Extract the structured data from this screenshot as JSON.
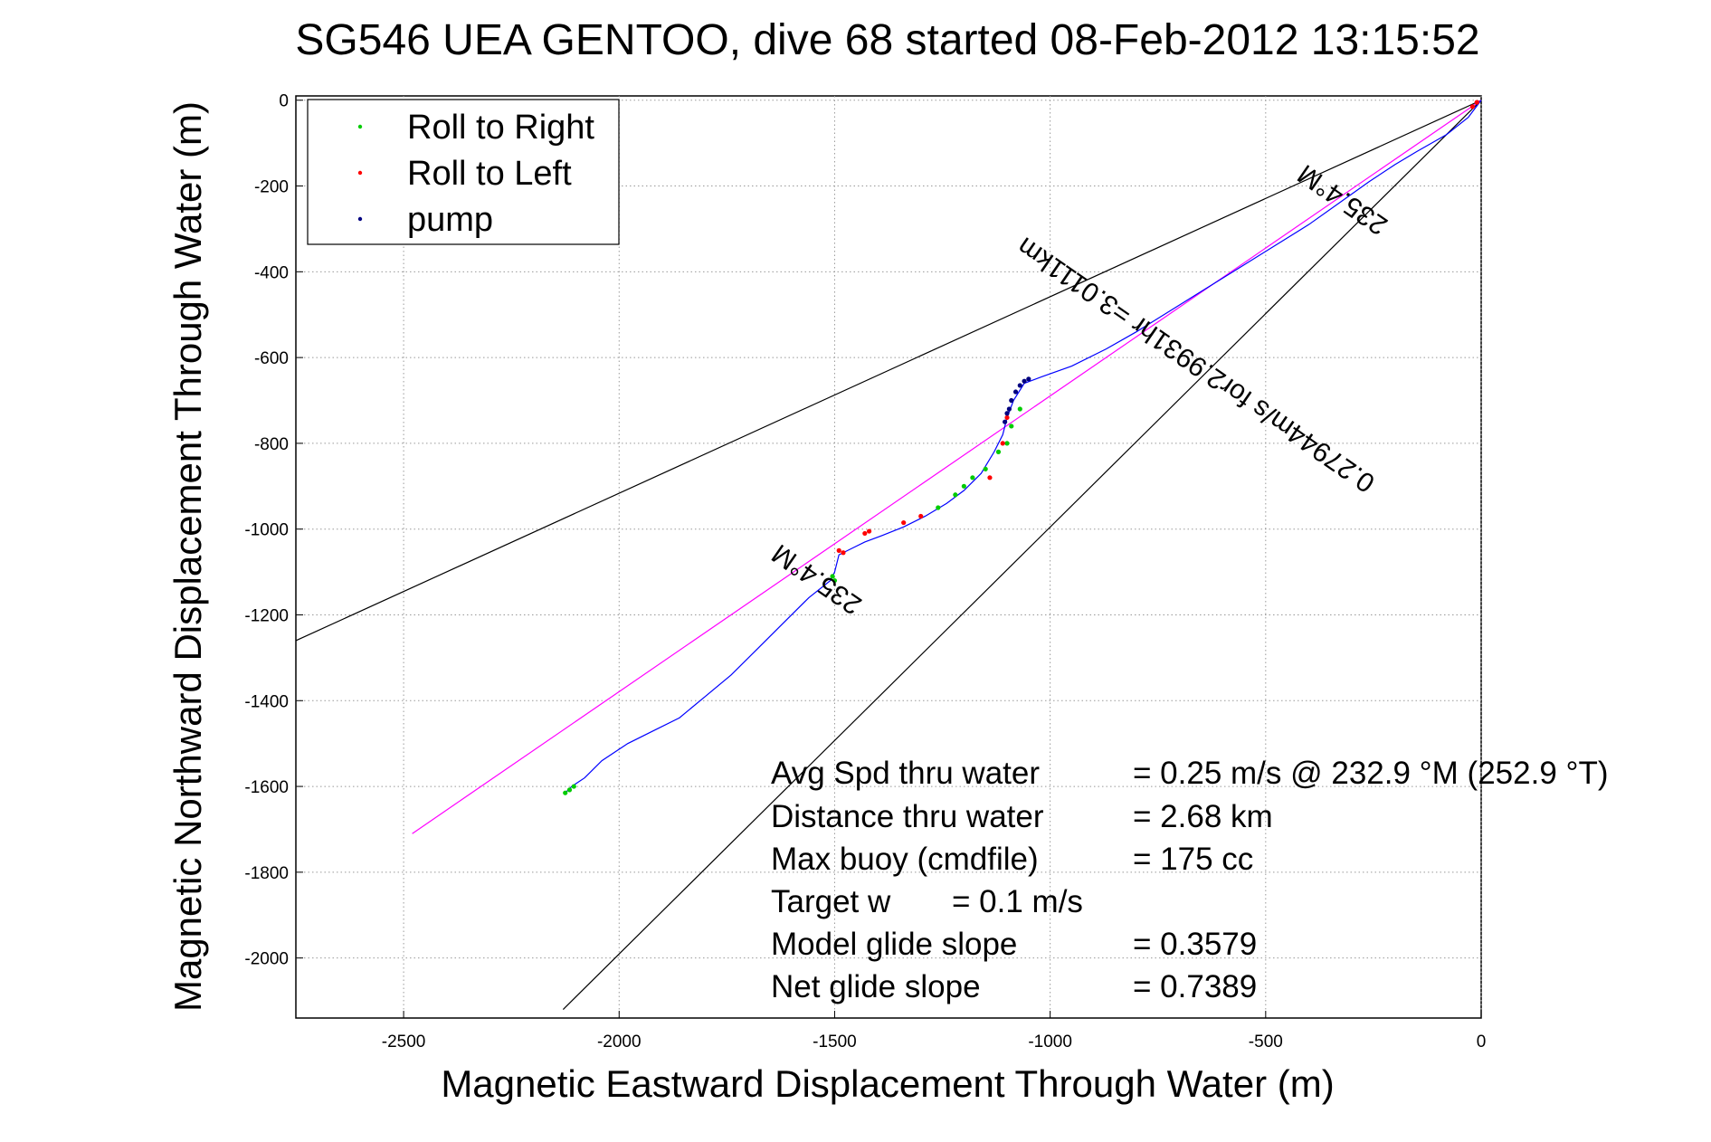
{
  "chart_data": {
    "type": "line",
    "title": "SG546 UEA GENTOO, dive 68 started 08-Feb-2012 13:15:52",
    "xlabel": "Magnetic Eastward Displacement Through Water (m)",
    "ylabel": "Magnetic Northward Displacement Through Water (m)",
    "xlim": [
      -2750,
      0
    ],
    "ylim": [
      -2140,
      10
    ],
    "xticks": [
      -2500,
      -2000,
      -1500,
      -1000,
      -500,
      0
    ],
    "yticks": [
      0,
      -200,
      -400,
      -600,
      -800,
      -1000,
      -1200,
      -1400,
      -1600,
      -1800,
      -2000
    ],
    "grid": true,
    "legend_position": "top-left",
    "legend": [
      {
        "label": "Roll to Right",
        "color": "#00cc00"
      },
      {
        "label": "Roll to Left",
        "color": "#ff0000"
      },
      {
        "label": "pump",
        "color": "#000080"
      }
    ],
    "track": {
      "color": "#0000ff",
      "points": [
        [
          0,
          0
        ],
        [
          -30,
          -40
        ],
        [
          -80,
          -80
        ],
        [
          -150,
          -120
        ],
        [
          -200,
          -150
        ],
        [
          -260,
          -190
        ],
        [
          -330,
          -240
        ],
        [
          -400,
          -290
        ],
        [
          -480,
          -340
        ],
        [
          -560,
          -390
        ],
        [
          -640,
          -440
        ],
        [
          -720,
          -490
        ],
        [
          -800,
          -540
        ],
        [
          -870,
          -580
        ],
        [
          -950,
          -620
        ],
        [
          -1020,
          -645
        ],
        [
          -1060,
          -660
        ],
        [
          -1085,
          -700
        ],
        [
          -1100,
          -740
        ],
        [
          -1110,
          -780
        ],
        [
          -1130,
          -820
        ],
        [
          -1160,
          -870
        ],
        [
          -1200,
          -910
        ],
        [
          -1240,
          -940
        ],
        [
          -1290,
          -970
        ],
        [
          -1340,
          -995
        ],
        [
          -1390,
          -1015
        ],
        [
          -1430,
          -1030
        ],
        [
          -1460,
          -1045
        ],
        [
          -1490,
          -1060
        ],
        [
          -1500,
          -1100
        ],
        [
          -1510,
          -1120
        ],
        [
          -1560,
          -1160
        ],
        [
          -1620,
          -1220
        ],
        [
          -1680,
          -1280
        ],
        [
          -1740,
          -1340
        ],
        [
          -1800,
          -1390
        ],
        [
          -1860,
          -1440
        ],
        [
          -1920,
          -1470
        ],
        [
          -1980,
          -1500
        ],
        [
          -2040,
          -1540
        ],
        [
          -2080,
          -1580
        ],
        [
          -2110,
          -1600
        ],
        [
          -2125,
          -1615
        ]
      ]
    },
    "roll_right_points": [
      [
        -2125,
        -1615
      ],
      [
        -2115,
        -1608
      ],
      [
        -2105,
        -1600
      ],
      [
        -1505,
        -1110
      ],
      [
        -1500,
        -1120
      ],
      [
        -1220,
        -920
      ],
      [
        -1200,
        -900
      ],
      [
        -1180,
        -880
      ],
      [
        -1150,
        -860
      ],
      [
        -1120,
        -820
      ],
      [
        -1100,
        -800
      ],
      [
        -1090,
        -760
      ],
      [
        -1070,
        -720
      ],
      [
        -1260,
        -950
      ]
    ],
    "roll_left_points": [
      [
        -1490,
        -1050
      ],
      [
        -1480,
        -1055
      ],
      [
        -1430,
        -1010
      ],
      [
        -1420,
        -1005
      ],
      [
        -1340,
        -985
      ],
      [
        -1300,
        -970
      ],
      [
        -1140,
        -880
      ],
      [
        -1110,
        -800
      ],
      [
        -1100,
        -740
      ],
      [
        -10,
        -5
      ],
      [
        -20,
        -15
      ]
    ],
    "pump_points": [
      [
        -1060,
        -655
      ],
      [
        -1050,
        -650
      ],
      [
        -1070,
        -665
      ],
      [
        -1090,
        -700
      ],
      [
        -1100,
        -730
      ],
      [
        -1105,
        -750
      ],
      [
        -1095,
        -720
      ],
      [
        -1080,
        -680
      ]
    ],
    "reference_lines": [
      {
        "color": "#000000",
        "points": [
          [
            0,
            0
          ],
          [
            -2750,
            -1260
          ]
        ]
      },
      {
        "color": "#000000",
        "points": [
          [
            0,
            0
          ],
          [
            -2130,
            -2120
          ]
        ]
      },
      {
        "color": "#ff00ff",
        "points": [
          [
            0,
            0
          ],
          [
            -2480,
            -1710
          ]
        ]
      }
    ],
    "annotations": [
      {
        "text": "235.4°M",
        "x": -1530,
        "y": -1100,
        "angle_deg": 34.6
      },
      {
        "text": "235.4°M",
        "x": -310,
        "y": -215,
        "angle_deg": 34.6
      },
      {
        "text": "0.27944m/s for2.9931hr =3.0111km",
        "x": -650,
        "y": -600,
        "angle_deg": 34.6
      }
    ],
    "stats": {
      "rows": [
        {
          "label": "Avg Spd thru water",
          "value": "=  0.25 m/s @ 232.9 °M (252.9 °T)"
        },
        {
          "label": "Distance thru water",
          "value": "=  2.68 km"
        },
        {
          "label": "Max buoy (cmdfile)",
          "value": "= 175 cc"
        },
        {
          "label": "Target w",
          "value": "= 0.1 m/s"
        },
        {
          "label": "Model glide slope",
          "value": "= 0.3579"
        },
        {
          "label": "Net glide slope",
          "value": "= 0.7389"
        }
      ]
    }
  }
}
